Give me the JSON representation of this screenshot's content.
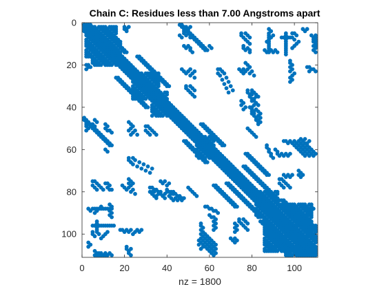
{
  "chart_data": {
    "type": "scatter",
    "title": "Chain C: Residues less than 7.00 Angstroms apart",
    "xlabel": "nz = 1800",
    "ylabel": "",
    "xlim": [
      0,
      111
    ],
    "ylim": [
      0,
      111
    ],
    "y_reversed": true,
    "x_ticks": [
      0,
      20,
      40,
      60,
      80,
      100
    ],
    "y_ticks": [
      0,
      20,
      40,
      60,
      80,
      100
    ],
    "grid": false,
    "marker_color": "#0072BD",
    "nnz": 1800,
    "diagonal_band": {
      "from": 1,
      "to": 110,
      "half_width": 3
    },
    "contact_blocks": [
      {
        "x": [
          2,
          16
        ],
        "y": [
          2,
          16
        ]
      },
      {
        "x": [
          5,
          18
        ],
        "y": [
          8,
          20
        ]
      },
      {
        "x": [
          24,
          36
        ],
        "y": [
          24,
          36
        ]
      },
      {
        "x": [
          33,
          40
        ],
        "y": [
          33,
          44
        ]
      },
      {
        "x": [
          54,
          62
        ],
        "y": [
          54,
          64
        ]
      },
      {
        "x": [
          82,
          92
        ],
        "y": [
          80,
          92
        ]
      },
      {
        "x": [
          96,
          110
        ],
        "y": [
          96,
          110
        ]
      },
      {
        "x": [
          86,
          108
        ],
        "y": [
          86,
          108
        ]
      }
    ],
    "contact_segments": [
      {
        "from": [
          8,
          2
        ],
        "to": [
          20,
          14
        ]
      },
      {
        "from": [
          26,
          16
        ],
        "to": [
          40,
          30
        ]
      },
      {
        "from": [
          16,
          26
        ],
        "to": [
          30,
          40
        ]
      },
      {
        "from": [
          45,
          0
        ],
        "to": [
          58,
          13
        ]
      },
      {
        "from": [
          0,
          45
        ],
        "to": [
          13,
          58
        ]
      },
      {
        "from": [
          56,
          48
        ],
        "to": [
          66,
          58
        ]
      },
      {
        "from": [
          48,
          56
        ],
        "to": [
          58,
          66
        ]
      },
      {
        "from": [
          76,
          68
        ],
        "to": [
          92,
          84
        ]
      },
      {
        "from": [
          68,
          76
        ],
        "to": [
          84,
          92
        ]
      },
      {
        "from": [
          94,
          84
        ],
        "to": [
          108,
          98
        ]
      },
      {
        "from": [
          84,
          94
        ],
        "to": [
          98,
          108
        ]
      },
      {
        "from": [
          88,
          96
        ],
        "to": [
          104,
          110
        ]
      },
      {
        "from": [
          96,
          88
        ],
        "to": [
          110,
          104
        ]
      },
      {
        "from": [
          110,
          96
        ],
        "to": [
          96,
          110
        ]
      },
      {
        "from": [
          108,
          88
        ],
        "to": [
          88,
          108
        ]
      },
      {
        "from": [
          62,
          77
        ],
        "to": [
          72,
          87
        ]
      },
      {
        "from": [
          77,
          62
        ],
        "to": [
          87,
          72
        ]
      }
    ],
    "contact_points": [
      [
        48,
        3
      ],
      [
        48,
        4
      ],
      [
        49,
        4
      ],
      [
        48,
        5
      ],
      [
        50,
        5
      ],
      [
        49,
        6
      ],
      [
        46,
        6
      ],
      [
        47,
        7
      ],
      [
        51,
        7
      ],
      [
        88,
        3
      ],
      [
        89,
        4
      ],
      [
        88,
        5
      ],
      [
        90,
        6
      ],
      [
        89,
        7
      ],
      [
        88,
        8
      ],
      [
        87,
        9
      ],
      [
        88,
        10
      ],
      [
        51,
        12
      ],
      [
        51,
        13
      ],
      [
        52,
        14
      ],
      [
        60,
        11
      ],
      [
        61,
        12
      ],
      [
        64,
        22
      ],
      [
        65,
        22
      ],
      [
        66,
        23
      ],
      [
        64,
        24
      ],
      [
        67,
        24
      ],
      [
        65,
        25
      ],
      [
        68,
        26
      ],
      [
        66,
        27
      ],
      [
        69,
        28
      ],
      [
        67,
        29
      ],
      [
        70,
        30
      ],
      [
        68,
        31
      ],
      [
        71,
        32
      ],
      [
        69,
        33
      ],
      [
        77,
        19
      ],
      [
        78,
        20
      ],
      [
        79,
        21
      ],
      [
        78,
        22
      ],
      [
        80,
        23
      ],
      [
        79,
        24
      ],
      [
        81,
        25
      ],
      [
        110,
        6
      ],
      [
        110,
        7
      ],
      [
        110,
        8
      ],
      [
        109,
        9
      ],
      [
        110,
        10
      ],
      [
        110,
        11
      ],
      [
        110,
        12
      ],
      [
        109,
        13
      ],
      [
        99,
        5
      ],
      [
        100,
        5
      ],
      [
        101,
        6
      ],
      [
        99,
        7
      ],
      [
        100,
        8
      ],
      [
        102,
        9
      ],
      [
        101,
        10
      ],
      [
        100,
        11
      ],
      [
        99,
        12
      ],
      [
        98,
        18
      ],
      [
        98,
        19
      ],
      [
        99,
        20
      ],
      [
        98,
        21
      ],
      [
        99,
        22
      ],
      [
        98,
        23
      ],
      [
        100,
        24
      ],
      [
        99,
        25
      ],
      [
        98,
        26
      ],
      [
        99,
        27
      ],
      [
        98,
        28
      ],
      [
        106,
        21
      ],
      [
        107,
        21
      ],
      [
        108,
        22
      ],
      [
        109,
        22
      ],
      [
        107,
        23
      ],
      [
        110,
        23
      ],
      [
        2,
        20
      ],
      [
        3,
        20
      ],
      [
        4,
        21
      ],
      [
        2,
        22
      ],
      [
        3,
        21
      ],
      [
        2,
        48
      ],
      [
        3,
        48
      ],
      [
        2,
        49
      ],
      [
        3,
        50
      ],
      [
        2,
        51
      ],
      [
        11,
        48
      ],
      [
        12,
        49
      ],
      [
        11,
        50
      ],
      [
        12,
        51
      ],
      [
        22,
        47
      ],
      [
        23,
        48
      ],
      [
        24,
        49
      ],
      [
        23,
        50
      ],
      [
        22,
        51
      ],
      [
        25,
        51
      ],
      [
        24,
        52
      ],
      [
        23,
        53
      ],
      [
        26,
        53
      ],
      [
        30,
        49
      ],
      [
        31,
        49
      ],
      [
        32,
        50
      ],
      [
        30,
        51
      ],
      [
        33,
        51
      ],
      [
        31,
        52
      ],
      [
        34,
        52
      ],
      [
        32,
        53
      ],
      [
        35,
        53
      ],
      [
        80,
        33
      ],
      [
        81,
        33
      ],
      [
        80,
        34
      ],
      [
        82,
        35
      ],
      [
        81,
        36
      ],
      [
        80,
        37
      ],
      [
        82,
        38
      ],
      [
        81,
        39
      ],
      [
        80,
        40
      ],
      [
        82,
        41
      ],
      [
        81,
        42
      ],
      [
        80,
        43
      ],
      [
        75,
        37
      ],
      [
        76,
        38
      ],
      [
        75,
        39
      ],
      [
        77,
        40
      ],
      [
        76,
        41
      ],
      [
        83,
        42
      ],
      [
        84,
        43
      ],
      [
        83,
        44
      ],
      [
        84,
        45
      ],
      [
        83,
        46
      ],
      [
        84,
        47
      ],
      [
        102,
        56
      ],
      [
        103,
        57
      ],
      [
        102,
        58
      ],
      [
        104,
        58
      ],
      [
        103,
        59
      ],
      [
        105,
        59
      ],
      [
        104,
        60
      ],
      [
        106,
        60
      ],
      [
        105,
        61
      ],
      [
        107,
        61
      ],
      [
        106,
        62
      ],
      [
        108,
        62
      ],
      [
        107,
        63
      ],
      [
        109,
        63
      ],
      [
        103,
        55
      ],
      [
        104,
        56
      ],
      [
        105,
        57
      ],
      [
        106,
        58
      ],
      [
        107,
        59
      ],
      [
        108,
        60
      ],
      [
        109,
        61
      ],
      [
        110,
        62
      ],
      [
        93,
        74
      ],
      [
        94,
        74
      ],
      [
        95,
        75
      ],
      [
        93,
        76
      ],
      [
        96,
        76
      ],
      [
        94,
        77
      ],
      [
        97,
        77
      ],
      [
        95,
        78
      ],
      [
        98,
        78
      ],
      [
        102,
        70
      ],
      [
        103,
        71
      ],
      [
        102,
        72
      ],
      [
        104,
        72
      ],
      [
        103,
        73
      ],
      [
        5,
        75
      ],
      [
        6,
        75
      ],
      [
        7,
        76
      ],
      [
        5,
        77
      ],
      [
        8,
        77
      ],
      [
        6,
        78
      ],
      [
        9,
        78
      ],
      [
        7,
        79
      ],
      [
        10,
        79
      ],
      [
        11,
        76
      ],
      [
        12,
        76
      ],
      [
        13,
        77
      ],
      [
        12,
        78
      ],
      [
        13,
        79
      ],
      [
        14,
        79
      ],
      [
        22,
        74
      ],
      [
        23,
        75
      ],
      [
        22,
        76
      ],
      [
        24,
        76
      ],
      [
        23,
        77
      ],
      [
        22,
        78
      ],
      [
        32,
        78
      ],
      [
        33,
        78
      ],
      [
        34,
        79
      ],
      [
        35,
        79
      ],
      [
        32,
        80
      ],
      [
        36,
        80
      ],
      [
        33,
        81
      ],
      [
        37,
        81
      ],
      [
        34,
        82
      ],
      [
        38,
        82
      ],
      [
        35,
        83
      ],
      [
        39,
        83
      ],
      [
        40,
        79
      ],
      [
        41,
        80
      ],
      [
        42,
        80
      ],
      [
        43,
        81
      ],
      [
        44,
        81
      ],
      [
        45,
        82
      ],
      [
        46,
        82
      ],
      [
        47,
        83
      ],
      [
        48,
        83
      ],
      [
        50,
        78
      ],
      [
        51,
        79
      ],
      [
        52,
        80
      ],
      [
        53,
        81
      ],
      [
        54,
        82
      ],
      [
        5,
        88
      ],
      [
        6,
        88
      ],
      [
        7,
        88
      ],
      [
        8,
        88
      ],
      [
        9,
        88
      ],
      [
        10,
        88
      ],
      [
        11,
        88
      ],
      [
        12,
        88
      ],
      [
        13,
        88
      ],
      [
        14,
        88
      ],
      [
        5,
        96
      ],
      [
        6,
        96
      ],
      [
        7,
        96
      ],
      [
        8,
        96
      ],
      [
        9,
        96
      ],
      [
        10,
        96
      ],
      [
        11,
        96
      ],
      [
        12,
        96
      ],
      [
        13,
        96
      ],
      [
        14,
        96
      ],
      [
        15,
        96
      ],
      [
        7,
        94
      ],
      [
        7,
        95
      ],
      [
        7,
        97
      ],
      [
        7,
        98
      ],
      [
        13,
        86
      ],
      [
        14,
        87
      ],
      [
        13,
        89
      ],
      [
        14,
        90
      ],
      [
        13,
        91
      ],
      [
        14,
        92
      ],
      [
        6,
        108
      ],
      [
        7,
        109
      ],
      [
        8,
        109
      ],
      [
        9,
        110
      ],
      [
        10,
        110
      ],
      [
        11,
        109
      ],
      [
        12,
        110
      ],
      [
        13,
        109
      ],
      [
        14,
        110
      ],
      [
        3,
        104
      ],
      [
        4,
        105
      ],
      [
        3,
        106
      ],
      [
        56,
        95
      ],
      [
        56,
        96
      ],
      [
        57,
        97
      ],
      [
        56,
        98
      ],
      [
        57,
        99
      ],
      [
        56,
        100
      ],
      [
        57,
        101
      ],
      [
        56,
        102
      ],
      [
        57,
        103
      ],
      [
        58,
        100
      ],
      [
        59,
        101
      ],
      [
        60,
        102
      ],
      [
        61,
        103
      ],
      [
        62,
        104
      ],
      [
        63,
        105
      ],
      [
        55,
        103
      ],
      [
        56,
        104
      ],
      [
        55,
        105
      ],
      [
        57,
        106
      ],
      [
        56,
        107
      ],
      [
        58,
        87
      ],
      [
        59,
        87
      ],
      [
        60,
        88
      ],
      [
        61,
        88
      ],
      [
        62,
        89
      ],
      [
        63,
        89
      ],
      [
        64,
        90
      ],
      [
        62,
        94
      ],
      [
        63,
        95
      ],
      [
        62,
        96
      ],
      [
        63,
        97
      ],
      [
        62,
        98
      ],
      [
        72,
        95
      ],
      [
        73,
        96
      ],
      [
        72,
        97
      ],
      [
        73,
        98
      ],
      [
        72,
        99
      ],
      [
        60,
        91
      ],
      [
        61,
        92
      ],
      [
        62,
        92
      ],
      [
        63,
        93
      ]
    ]
  }
}
